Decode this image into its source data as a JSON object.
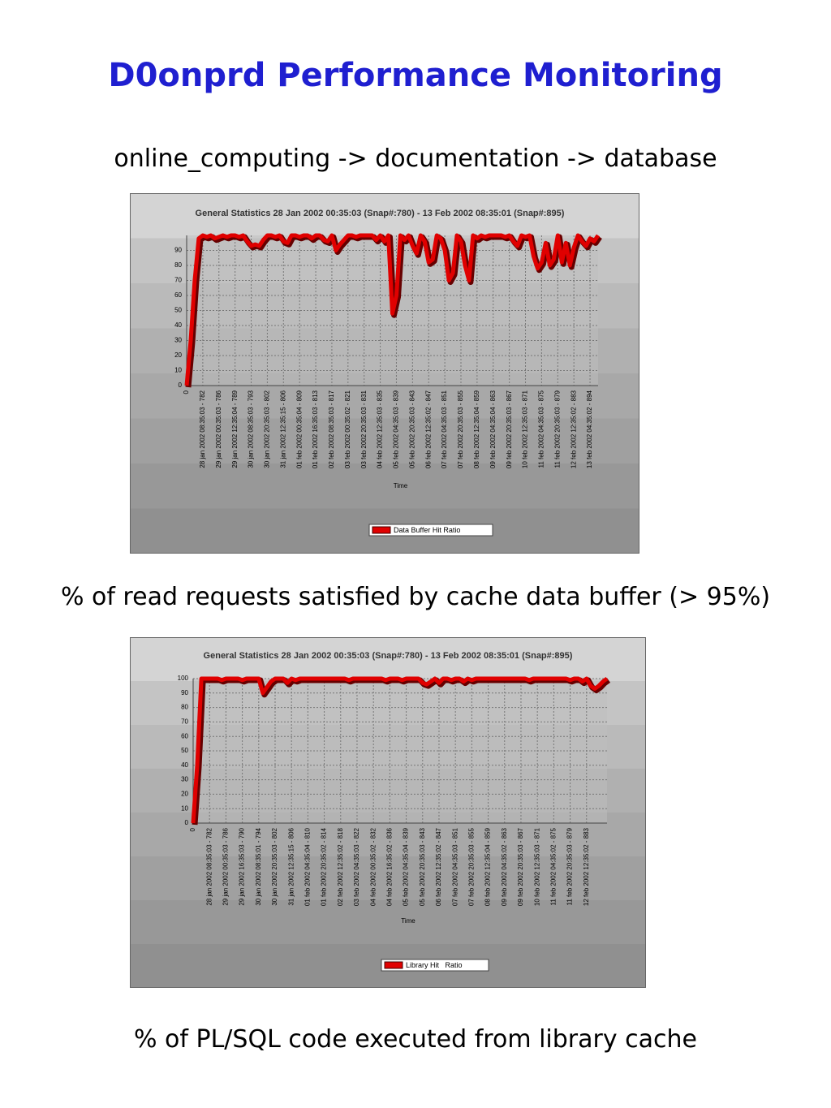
{
  "title": "D0onprd Performance Monitoring",
  "subtitle": "online_computing -> documentation -> database",
  "captions": [
    "% of read requests satisfied by cache data buffer (> 95%)",
    "% of PL/SQL code executed from library cache"
  ],
  "chart_data": [
    {
      "type": "line",
      "title": "General Statistics 28 Jan 2002 00:35:03 (Snap#:780) - 13 Feb 2002 08:35:01 (Snap#:895)",
      "x_label": "Time",
      "ylim": [
        0,
        100
      ],
      "yticks": [
        0,
        10,
        20,
        30,
        40,
        50,
        60,
        70,
        80,
        90
      ],
      "grid": true,
      "categories": [
        "0",
        null,
        null,
        null,
        "28 jan 2002 08:35:03 - 782",
        null,
        null,
        null,
        "29 jan 2002 00:35:03 - 786",
        null,
        null,
        null,
        "29 jan 2002 12:35:04 - 789",
        null,
        null,
        null,
        "30 jan 2002 08:35:03 - 793",
        null,
        null,
        null,
        "30 jan 2002 20:35:03 - 802",
        null,
        null,
        null,
        "31 jan 2002 12:35:15 - 806",
        null,
        null,
        null,
        "01 feb 2002 00:35:04 - 809",
        null,
        null,
        null,
        "01 feb 2002 16:35:03 - 813",
        null,
        null,
        null,
        "02 feb 2002 08:35:03 - 817",
        null,
        null,
        null,
        "03 feb 2002 00:35:02 - 821",
        null,
        null,
        null,
        "03 feb 2002 20:35:03 - 831",
        null,
        null,
        null,
        "04 feb 2002 12:35:03 - 835",
        null,
        null,
        null,
        "05 feb 2002 04:35:03 - 839",
        null,
        null,
        null,
        "05 feb 2002 20:35:03 - 843",
        null,
        null,
        null,
        "06 feb 2002 12:35:02 - 847",
        null,
        null,
        null,
        "07 feb 2002 04:35:03 - 851",
        null,
        null,
        null,
        "07 feb 2002 20:35:03 - 855",
        null,
        null,
        null,
        "08 feb 2002 12:35:04 - 859",
        null,
        null,
        null,
        "09 feb 2002 04:35:04 - 863",
        null,
        null,
        null,
        "09 feb 2002 20:35:03 - 867",
        null,
        null,
        null,
        "10 feb 2002 12:35:03 - 871",
        null,
        null,
        null,
        "11 feb 2002 04:35:03 - 875",
        null,
        null,
        null,
        "11 feb 2002 20:35:03 - 879",
        null,
        null,
        null,
        "12 feb 2002 12:35:02 - 883",
        null,
        null,
        null,
        "13 feb 2002 04:35:02 - 894",
        null,
        null
      ],
      "series": [
        {
          "name": "Data Buffer Hit Ratio",
          "color": "#e00000",
          "values": [
            0,
            30,
            70,
            98,
            100,
            99,
            100,
            98,
            99,
            100,
            99,
            100,
            100,
            99,
            100,
            96,
            93,
            94,
            93,
            97,
            100,
            100,
            99,
            100,
            96,
            95,
            100,
            100,
            99,
            100,
            100,
            98,
            100,
            100,
            97,
            96,
            100,
            90,
            94,
            97,
            100,
            100,
            99,
            100,
            100,
            100,
            100,
            97,
            100,
            96,
            100,
            48,
            60,
            100,
            97,
            100,
            93,
            88,
            100,
            96,
            82,
            84,
            100,
            98,
            90,
            70,
            75,
            100,
            96,
            80,
            70,
            100,
            98,
            100,
            99,
            100,
            100,
            100,
            100,
            99,
            100,
            96,
            93,
            100,
            99,
            100,
            86,
            78,
            82,
            95,
            80,
            84,
            100,
            82,
            95,
            80,
            92,
            100,
            96,
            93,
            98,
            96,
            100
          ]
        }
      ]
    },
    {
      "type": "line",
      "title": "General Statistics 28 Jan 2002 00:35:03 (Snap#:780) - 13 Feb 2002 08:35:01 (Snap#:895)",
      "x_label": "Time",
      "ylim": [
        0,
        100
      ],
      "yticks": [
        0,
        10,
        20,
        30,
        40,
        50,
        60,
        70,
        80,
        90,
        100
      ],
      "grid": true,
      "categories": [
        "0",
        null,
        null,
        null,
        "28 jan 2002 08:35:03 - 782",
        null,
        null,
        null,
        "29 jan 2002 00:35:03 - 786",
        null,
        null,
        null,
        "29 jan 2002 16:35:03 - 790",
        null,
        null,
        null,
        "30 jan 2002 08:35:01 - 794",
        null,
        null,
        null,
        "30 jan 2002 20:35:03 - 802",
        null,
        null,
        null,
        "31 jan 2002 12:35:15 - 806",
        null,
        null,
        null,
        "01 feb 2002 04:35:04 - 810",
        null,
        null,
        null,
        "01 feb 2002 20:35:02 - 814",
        null,
        null,
        null,
        "02 feb 2002 12:35:02 - 818",
        null,
        null,
        null,
        "03 feb 2002 04:35:03 - 822",
        null,
        null,
        null,
        "04 feb 2002 00:35:02 - 832",
        null,
        null,
        null,
        "04 feb 2002 16:35:02 - 836",
        null,
        null,
        null,
        "05 feb 2002 04:35:04 - 839",
        null,
        null,
        null,
        "05 feb 2002 20:35:03 - 843",
        null,
        null,
        null,
        "06 feb 2002 12:35:02 - 847",
        null,
        null,
        null,
        "07 feb 2002 04:35:03 - 851",
        null,
        null,
        null,
        "07 feb 2002 20:35:03 - 855",
        null,
        null,
        null,
        "08 feb 2002 12:35:04 - 859",
        null,
        null,
        null,
        "09 feb 2002 04:35:02 - 863",
        null,
        null,
        null,
        "09 feb 2002 20:35:03 - 867",
        null,
        null,
        null,
        "10 feb 2002 12:35:03 - 871",
        null,
        null,
        null,
        "11 feb 2002 04:35:02 - 875",
        null,
        null,
        null,
        "11 feb 2002 20:35:03 - 879",
        null,
        null,
        null,
        "12 feb 2002 12:35:02 - 883",
        null,
        null,
        null,
        null,
        null
      ],
      "series": [
        {
          "name": "Library Hit   Ratio",
          "color": "#e00000",
          "values": [
            0,
            40,
            100,
            100,
            100,
            100,
            100,
            99,
            100,
            100,
            100,
            100,
            99,
            100,
            100,
            100,
            100,
            90,
            94,
            98,
            100,
            100,
            100,
            97,
            100,
            99,
            100,
            100,
            100,
            100,
            100,
            100,
            100,
            100,
            100,
            100,
            100,
            100,
            99,
            100,
            100,
            100,
            100,
            100,
            100,
            100,
            100,
            99,
            100,
            100,
            100,
            99,
            100,
            100,
            100,
            100,
            97,
            96,
            98,
            100,
            97,
            100,
            100,
            99,
            100,
            100,
            98,
            100,
            99,
            100,
            100,
            100,
            100,
            100,
            100,
            100,
            100,
            100,
            100,
            100,
            100,
            100,
            99,
            100,
            100,
            100,
            100,
            100,
            100,
            100,
            100,
            100,
            99,
            100,
            100,
            98,
            100,
            95,
            93,
            95,
            98,
            100
          ]
        }
      ]
    }
  ]
}
